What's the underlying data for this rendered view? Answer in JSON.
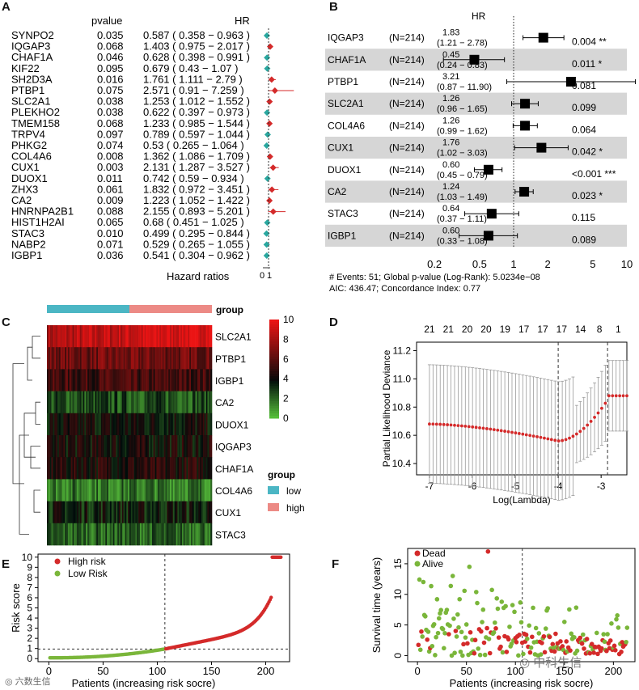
{
  "panels": {
    "a": "A",
    "b": "B",
    "c": "C",
    "d": "D",
    "e": "E",
    "f": "F"
  },
  "watermarks": {
    "left": "六数生信",
    "right": "中科生信"
  },
  "chart_data": [
    {
      "id": "A",
      "type": "forest",
      "col_pvalue": "pvalue",
      "col_hr": "HR",
      "xlabel": "Hazard ratios",
      "xticks": [
        "0",
        "1"
      ],
      "rows": [
        {
          "gene": "SYNPO2",
          "p": "0.035",
          "hr_text": "0.587 ( 0.358 − 0.963 )",
          "hr": 0.587,
          "lo": 0.358,
          "hi": 0.963
        },
        {
          "gene": "IQGAP3",
          "p": "0.068",
          "hr_text": "1.403 ( 0.975 − 2.017 )",
          "hr": 1.403,
          "lo": 0.975,
          "hi": 2.017
        },
        {
          "gene": "CHAF1A",
          "p": "0.046",
          "hr_text": "0.628 ( 0.398 − 0.991 )",
          "hr": 0.628,
          "lo": 0.398,
          "hi": 0.991
        },
        {
          "gene": "KIF22",
          "p": "0.095",
          "hr_text": "0.679 ( 0.43 − 1.07 )",
          "hr": 0.679,
          "lo": 0.43,
          "hi": 1.07
        },
        {
          "gene": "SH2D3A",
          "p": "0.016",
          "hr_text": "1.761 ( 1.111 − 2.79 )",
          "hr": 1.761,
          "lo": 1.111,
          "hi": 2.79
        },
        {
          "gene": "PTBP1",
          "p": "0.075",
          "hr_text": "2.571 ( 0.91 − 7.259 )",
          "hr": 2.571,
          "lo": 0.91,
          "hi": 7.259
        },
        {
          "gene": "SLC2A1",
          "p": "0.038",
          "hr_text": "1.253 ( 1.012 − 1.552 )",
          "hr": 1.253,
          "lo": 1.012,
          "hi": 1.552
        },
        {
          "gene": "PLEKHO2",
          "p": "0.038",
          "hr_text": "0.622 ( 0.397 − 0.973 )",
          "hr": 0.622,
          "lo": 0.397,
          "hi": 0.973
        },
        {
          "gene": "TMEM158",
          "p": "0.068",
          "hr_text": "1.233 ( 0.985 − 1.544 )",
          "hr": 1.233,
          "lo": 0.985,
          "hi": 1.544
        },
        {
          "gene": "TRPV4",
          "p": "0.097",
          "hr_text": "0.789 ( 0.597 − 1.044 )",
          "hr": 0.789,
          "lo": 0.597,
          "hi": 1.044
        },
        {
          "gene": "PHKG2",
          "p": "0.074",
          "hr_text": "0.53 ( 0.265 − 1.064 )",
          "hr": 0.53,
          "lo": 0.265,
          "hi": 1.064
        },
        {
          "gene": "COL4A6",
          "p": "0.008",
          "hr_text": "1.362 ( 1.086 − 1.709 )",
          "hr": 1.362,
          "lo": 1.086,
          "hi": 1.709
        },
        {
          "gene": "CUX1",
          "p": "0.003",
          "hr_text": "2.131 ( 1.287 − 3.527 )",
          "hr": 2.131,
          "lo": 1.287,
          "hi": 3.527
        },
        {
          "gene": "DUOX1",
          "p": "0.011",
          "hr_text": "0.742 ( 0.59 − 0.934 )",
          "hr": 0.742,
          "lo": 0.59,
          "hi": 0.934
        },
        {
          "gene": "ZHX3",
          "p": "0.061",
          "hr_text": "1.832 ( 0.972 − 3.451 )",
          "hr": 1.832,
          "lo": 0.972,
          "hi": 3.451
        },
        {
          "gene": "CA2",
          "p": "0.009",
          "hr_text": "1.223 ( 1.052 − 1.422 )",
          "hr": 1.223,
          "lo": 1.052,
          "hi": 1.422
        },
        {
          "gene": "HNRNPA2B1",
          "p": "0.088",
          "hr_text": "2.155 ( 0.893 − 5.201 )",
          "hr": 2.155,
          "lo": 0.893,
          "hi": 5.201
        },
        {
          "gene": "HIST1H2AI",
          "p": "0.065",
          "hr_text": "0.68 ( 0.451 − 1.025 )",
          "hr": 0.68,
          "lo": 0.451,
          "hi": 1.025
        },
        {
          "gene": "STAC3",
          "p": "0.010",
          "hr_text": "0.499 ( 0.295 − 0.844 )",
          "hr": 0.499,
          "lo": 0.295,
          "hi": 0.844
        },
        {
          "gene": "NABP2",
          "p": "0.071",
          "hr_text": "0.529 ( 0.265 − 1.055 )",
          "hr": 0.529,
          "lo": 0.265,
          "hi": 1.055
        },
        {
          "gene": "IGBP1",
          "p": "0.036",
          "hr_text": "0.541 ( 0.304 − 0.962 )",
          "hr": 0.541,
          "lo": 0.304,
          "hi": 0.962
        }
      ]
    },
    {
      "id": "B",
      "type": "forest",
      "header": "HR",
      "xscale": "log",
      "xticks": [
        "0.2",
        "0.5",
        "1",
        "2",
        "5",
        "10"
      ],
      "footer1": "# Events: 51; Global p-value (Log-Rank): 5.0234e−08",
      "footer2": "AIC: 436.47; Concordance Index: 0.77",
      "rows": [
        {
          "gene": "IQGAP3",
          "n": "(N=214)",
          "hr": "1.83",
          "ci": "(1.21 − 2.78)",
          "p": "0.004 **",
          "v": 1.83,
          "lo": 1.21,
          "hi": 2.78
        },
        {
          "gene": "CHAF1A",
          "n": "(N=214)",
          "hr": "0.45",
          "ci": "(0.24 − 0.83)",
          "p": "0.011 *",
          "v": 0.45,
          "lo": 0.24,
          "hi": 0.83
        },
        {
          "gene": "PTBP1",
          "n": "(N=214)",
          "hr": "3.21",
          "ci": "(0.87 − 11.90)",
          "p": "0.081",
          "v": 3.21,
          "lo": 0.87,
          "hi": 11.9
        },
        {
          "gene": "SLC2A1",
          "n": "(N=214)",
          "hr": "1.26",
          "ci": "(0.96 − 1.65)",
          "p": "0.099",
          "v": 1.26,
          "lo": 0.96,
          "hi": 1.65
        },
        {
          "gene": "COL4A6",
          "n": "(N=214)",
          "hr": "1.26",
          "ci": "(0.99 − 1.62)",
          "p": "0.064",
          "v": 1.26,
          "lo": 0.99,
          "hi": 1.62
        },
        {
          "gene": "CUX1",
          "n": "(N=214)",
          "hr": "1.76",
          "ci": "(1.02 − 3.03)",
          "p": "0.042 *",
          "v": 1.76,
          "lo": 1.02,
          "hi": 3.03
        },
        {
          "gene": "DUOX1",
          "n": "(N=214)",
          "hr": "0.60",
          "ci": "(0.45 − 0.79)",
          "p": "<0.001 ***",
          "v": 0.6,
          "lo": 0.45,
          "hi": 0.79
        },
        {
          "gene": "CA2",
          "n": "(N=214)",
          "hr": "1.24",
          "ci": "(1.03 − 1.49)",
          "p": "0.023 *",
          "v": 1.24,
          "lo": 1.03,
          "hi": 1.49
        },
        {
          "gene": "STAC3",
          "n": "(N=214)",
          "hr": "0.64",
          "ci": "(0.37 − 1.11)",
          "p": "0.115",
          "v": 0.64,
          "lo": 0.37,
          "hi": 1.11
        },
        {
          "gene": "IGBP1",
          "n": "(N=214)",
          "hr": "0.60",
          "ci": "(0.33 − 1.08)",
          "p": "0.089",
          "v": 0.6,
          "lo": 0.33,
          "hi": 1.08
        }
      ]
    },
    {
      "id": "C",
      "type": "heatmap",
      "genes": [
        "SLC2A1",
        "PTBP1",
        "IGBP1",
        "CA2",
        "DUOX1",
        "IQGAP3",
        "CHAF1A",
        "COL4A6",
        "CUX1",
        "STAC3"
      ],
      "row_means": [
        8.2,
        6.6,
        5.4,
        2.6,
        4.0,
        4.2,
        4.6,
        1.8,
        3.6,
        2.2
      ],
      "group_label": "group",
      "legend_title": "group",
      "groups": [
        {
          "name": "low",
          "color": "#4bb6c4",
          "count": 107
        },
        {
          "name": "high",
          "color": "#ec8a85",
          "count": 107
        }
      ],
      "scale_ticks": [
        "10",
        "8",
        "6",
        "4",
        "2",
        "0"
      ],
      "scale_range": [
        0,
        10
      ]
    },
    {
      "id": "D",
      "type": "line",
      "xlabel": "Log(Lambda)",
      "ylabel": "Partial Likelihood Deviance",
      "xticks": [
        "-7",
        "-6",
        "-5",
        "-4",
        "-3"
      ],
      "yticks": [
        "10.4",
        "10.6",
        "10.8",
        "11.0",
        "11.2"
      ],
      "top_ticks": [
        "21",
        "21",
        "20",
        "20",
        "19",
        "17",
        "17",
        "17",
        "14",
        "8",
        "1"
      ],
      "xlim": [
        -7.3,
        -2.4
      ],
      "ylim": [
        10.32,
        11.26
      ],
      "vlines": [
        -4.0,
        -2.85
      ]
    },
    {
      "id": "E",
      "type": "scatter",
      "xlabel": "Patients (increasing risk socre)",
      "ylabel": "Risk score",
      "legend": [
        "High risk",
        "Low Risk"
      ],
      "colors": {
        "high": "#d42a2a",
        "low": "#7ab63a"
      },
      "xticks": [
        "0",
        "50",
        "100",
        "150",
        "200"
      ],
      "yticks": [
        "0",
        "1",
        "2",
        "3",
        "4",
        "5",
        "6",
        "7",
        "8",
        "9",
        "10"
      ],
      "xlim": [
        -10,
        222
      ],
      "ylim": [
        -0.3,
        10.3
      ],
      "n": 214,
      "cutoff_index": 107,
      "cutoff_score": 0.95
    },
    {
      "id": "F",
      "type": "scatter",
      "xlabel": "Patients (increasing risk socre)",
      "ylabel": "Survival time (years)",
      "legend": [
        "Dead",
        "Alive"
      ],
      "colors": {
        "dead": "#d42a2a",
        "alive": "#7ab63a"
      },
      "xticks": [
        "0",
        "50",
        "100",
        "150",
        "200"
      ],
      "yticks": [
        "0",
        "5",
        "10",
        "15"
      ],
      "xlim": [
        -10,
        222
      ],
      "ylim": [
        -1,
        17.5
      ],
      "n": 214,
      "cutoff_index": 107
    }
  ]
}
